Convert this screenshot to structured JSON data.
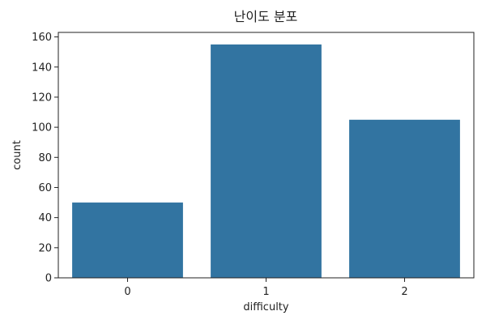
{
  "chart_data": {
    "type": "bar",
    "title": "난이도 분포",
    "xlabel": "difficulty",
    "ylabel": "count",
    "categories": [
      "0",
      "1",
      "2"
    ],
    "values": [
      50,
      155,
      105
    ],
    "ylim": [
      0,
      163
    ],
    "yticks": [
      0,
      20,
      40,
      60,
      80,
      100,
      120,
      140,
      160
    ],
    "grid": false,
    "bar_color": "#3274a1"
  }
}
